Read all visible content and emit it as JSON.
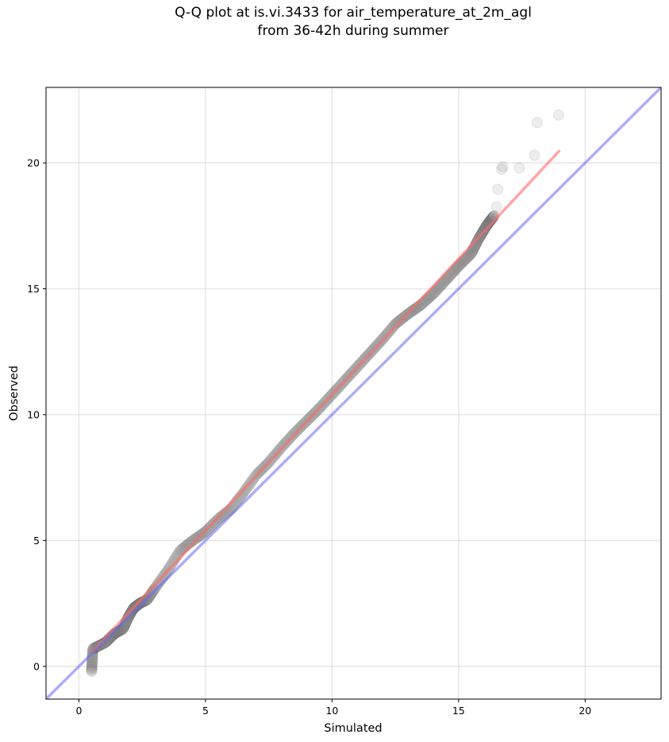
{
  "chart_data": {
    "type": "scatter",
    "title": "Q-Q plot at is.vi.3433 for air_temperature_at_2m_agl",
    "subtitle": "from 36-42h during summer",
    "xlabel": "Simulated",
    "ylabel": "Observed",
    "xlim": [
      -1.3,
      23.0
    ],
    "ylim": [
      -1.3,
      23.0
    ],
    "xticks": [
      0,
      5,
      10,
      15,
      20
    ],
    "yticks": [
      0,
      5,
      10,
      15,
      20
    ],
    "grid": true,
    "colors": {
      "points": "#888888",
      "point_edge": "#222222",
      "fit_line": "#ff6b6b",
      "identity_line": "#6a6af0"
    },
    "points_knots": [
      [
        0.5,
        -0.2
      ],
      [
        0.55,
        0.7
      ],
      [
        1.05,
        0.95
      ],
      [
        1.4,
        1.3
      ],
      [
        1.75,
        1.5
      ],
      [
        1.95,
        1.95
      ],
      [
        2.15,
        2.3
      ],
      [
        2.4,
        2.5
      ],
      [
        2.7,
        2.65
      ],
      [
        3.0,
        3.1
      ],
      [
        3.5,
        3.8
      ],
      [
        4.0,
        4.6
      ],
      [
        4.5,
        5.0
      ],
      [
        5.0,
        5.35
      ],
      [
        5.5,
        5.85
      ],
      [
        6.0,
        6.25
      ],
      [
        6.5,
        6.9
      ],
      [
        7.0,
        7.6
      ],
      [
        7.5,
        8.1
      ],
      [
        8.0,
        8.7
      ],
      [
        8.5,
        9.25
      ],
      [
        9.0,
        9.75
      ],
      [
        9.5,
        10.25
      ],
      [
        10.0,
        10.8
      ],
      [
        10.5,
        11.35
      ],
      [
        11.0,
        11.9
      ],
      [
        11.5,
        12.45
      ],
      [
        12.0,
        13.0
      ],
      [
        12.5,
        13.6
      ],
      [
        13.0,
        14.0
      ],
      [
        13.5,
        14.35
      ],
      [
        14.0,
        14.8
      ],
      [
        14.5,
        15.35
      ],
      [
        15.0,
        15.9
      ],
      [
        15.5,
        16.4
      ],
      [
        15.8,
        17.0
      ],
      [
        16.1,
        17.5
      ],
      [
        16.4,
        17.9
      ]
    ],
    "n_points": 520,
    "outlier_points": [
      [
        16.5,
        18.25
      ],
      [
        16.55,
        18.95
      ],
      [
        16.7,
        19.75
      ],
      [
        16.75,
        19.85
      ],
      [
        17.4,
        19.8
      ],
      [
        18.0,
        20.3
      ],
      [
        18.1,
        21.6
      ],
      [
        18.95,
        21.9
      ]
    ],
    "fit_line": {
      "x": [
        0.5,
        19.0
      ],
      "y": [
        0.55,
        20.5
      ]
    },
    "identity_line": {
      "x": [
        -1.3,
        23.0
      ],
      "y": [
        -1.3,
        23.0
      ]
    }
  }
}
